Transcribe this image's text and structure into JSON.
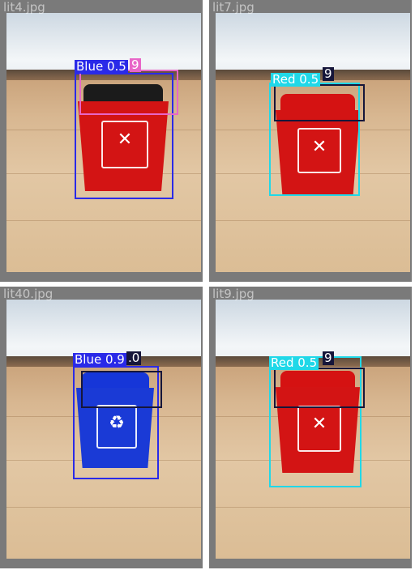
{
  "tiles": [
    {
      "filename": "lit4.jpg",
      "bin_color": "red",
      "lid_color": "#1b1b1b",
      "icon": "hazard-icon",
      "detections": [
        {
          "label": "Blue 0.5",
          "color": "#2a2ae8"
        },
        {
          "label": "9",
          "color": "#e866c8"
        }
      ]
    },
    {
      "filename": "lit7.jpg",
      "bin_color": "red",
      "lid_color": "#d51212",
      "icon": "hazard-icon",
      "detections": [
        {
          "label": "Red 0.5",
          "color": "#20d8e8"
        },
        {
          "label": "9",
          "color": "#16163a"
        }
      ]
    },
    {
      "filename": "lit40.jpg",
      "bin_color": "blue",
      "lid_color": "#1636d8",
      "icon": "recycle-icon",
      "detections": [
        {
          "label": "Blue 0.9",
          "color": "#2a2ae8"
        },
        {
          "label": ".0",
          "color": "#16163a"
        }
      ]
    },
    {
      "filename": "lit9.jpg",
      "bin_color": "red",
      "lid_color": "#d51212",
      "icon": "hazard-icon",
      "detections": [
        {
          "label": "Red 0.5",
          "color": "#20d8e8"
        },
        {
          "label": "9",
          "color": "#16163a"
        }
      ]
    }
  ]
}
